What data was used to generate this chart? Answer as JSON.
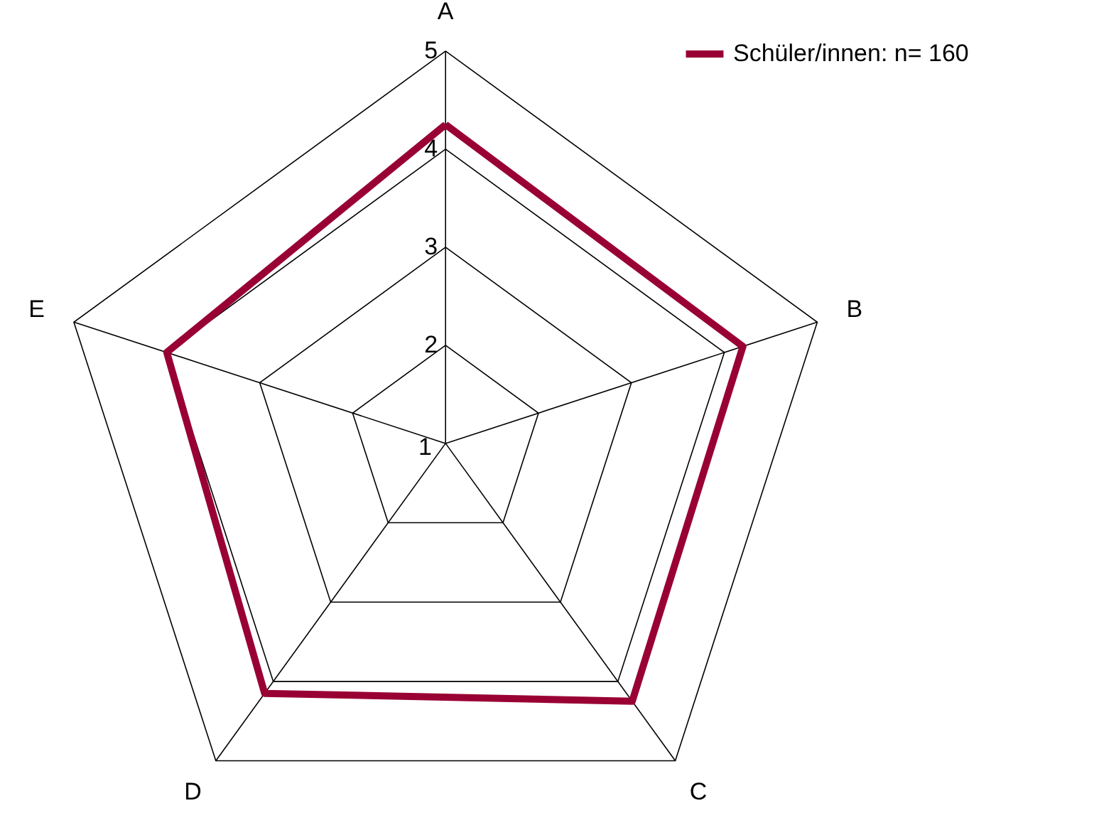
{
  "chart_data": {
    "type": "radar",
    "categories": [
      "A",
      "B",
      "C",
      "D",
      "E"
    ],
    "series": [
      {
        "name": "Schüler/innen: n= 160",
        "color": "#990033",
        "values": [
          4.25,
          4.2,
          4.25,
          4.15,
          4.0
        ]
      }
    ],
    "ylim": [
      1,
      5
    ],
    "yticks": [
      1,
      2,
      3,
      4,
      5
    ],
    "grid": true,
    "legend": "top right",
    "marker": "none"
  }
}
